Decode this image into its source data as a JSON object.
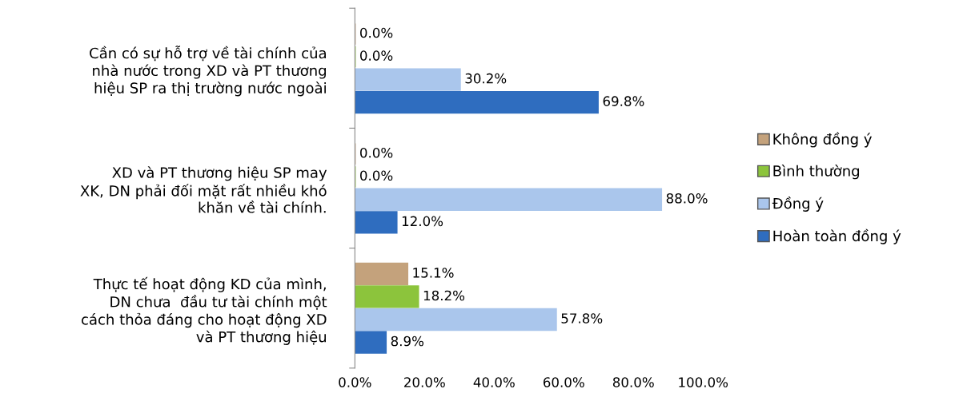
{
  "chart_data": {
    "type": "bar",
    "orientation": "horizontal",
    "categories": [
      "Cần có sự hỗ trợ về tài chính của\nnhà nước trong XD và PT thương\nhiệu SP ra thị trường nước ngoài",
      "XD và PT thương hiệu SP may\nXK, DN phải đối mặt rất nhiều khó\nkhăn về tài chính.",
      "Thực tế hoạt động KD của mình,\nDN chưa  đầu tư tài chính một\ncách thỏa đáng cho hoạt động XD\nvà PT thương hiệu"
    ],
    "series": [
      {
        "name": "Hoàn toàn đồng ý",
        "color": "#2f6dbf",
        "values": [
          69.8,
          12.0,
          8.9
        ],
        "value_labels": [
          "69.8%",
          "12.0%",
          "8.9%"
        ]
      },
      {
        "name": "Đồng ý",
        "color": "#aac6ec",
        "values": [
          30.2,
          88.0,
          57.8
        ],
        "value_labels": [
          "30.2%",
          "88.0%",
          "57.8%"
        ]
      },
      {
        "name": "Bình thường",
        "color": "#8cc43c",
        "values": [
          0.0,
          0.0,
          18.2
        ],
        "value_labels": [
          "0.0%",
          "0.0%",
          "18.2%"
        ]
      },
      {
        "name": "Không đồng ý",
        "color": "#c4a27c",
        "values": [
          0.0,
          0.0,
          15.1
        ],
        "value_labels": [
          "0.0%",
          "0.0%",
          "15.1%"
        ]
      }
    ],
    "xlim": [
      0,
      100
    ],
    "xticks": [
      {
        "value": 0,
        "label": "0.0%"
      },
      {
        "value": 20,
        "label": "20.0%"
      },
      {
        "value": 40,
        "label": "40.0%"
      },
      {
        "value": 60,
        "label": "60.0%"
      },
      {
        "value": 80,
        "label": "80.0%"
      },
      {
        "value": 100,
        "label": "100.0%"
      }
    ],
    "grid": false,
    "legend": "right"
  }
}
